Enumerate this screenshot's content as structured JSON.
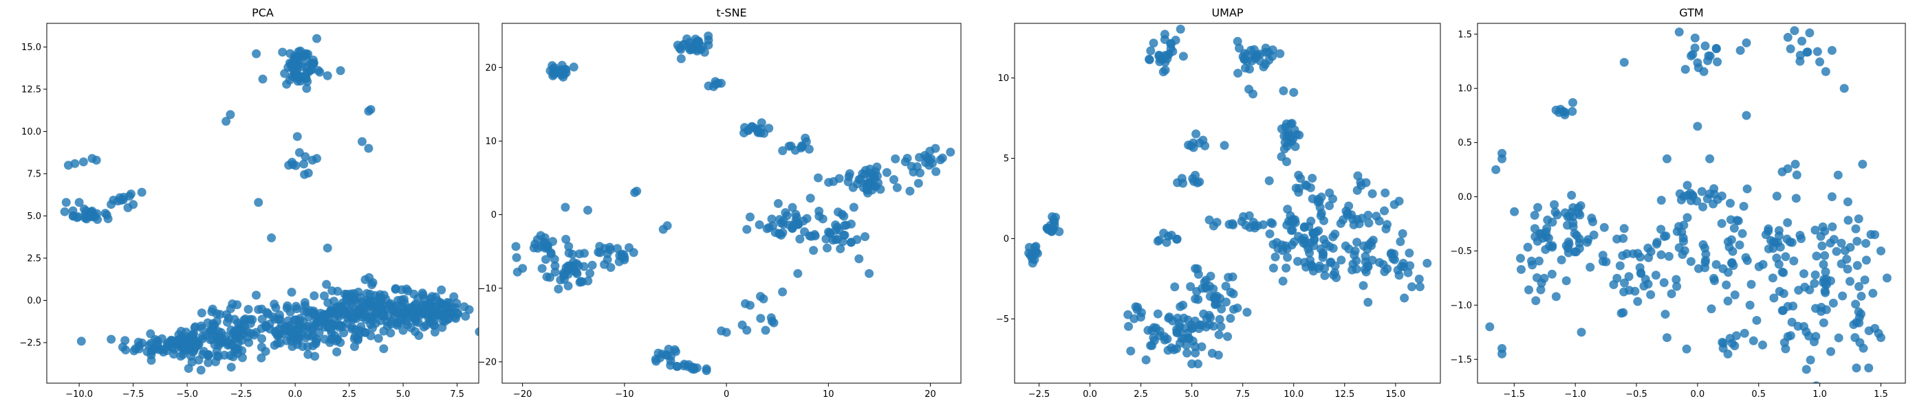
{
  "chart_data": [
    {
      "type": "scatter",
      "title": "PCA",
      "xlim": [
        -11.5,
        8.5
      ],
      "ylim": [
        -4.9,
        16.4
      ],
      "xticks": [
        -10.0,
        -7.5,
        -5.0,
        -2.5,
        0.0,
        2.5,
        5.0,
        7.5
      ],
      "yticks": [
        -2.5,
        0.0,
        2.5,
        5.0,
        7.5,
        10.0,
        12.5,
        15.0
      ],
      "xtick_labels": [
        "−10.0",
        "−7.5",
        "−5.0",
        "−2.5",
        "0.0",
        "2.5",
        "5.0",
        "7.5"
      ],
      "ytick_labels": [
        "−2.5",
        "0.0",
        "2.5",
        "5.0",
        "7.5",
        "10.0",
        "12.5",
        "15.0"
      ],
      "color": "#1f77b4",
      "clusters": [
        {
          "cx": -5.0,
          "cy": -2.6,
          "sx": 1.4,
          "sy": 0.5,
          "n": 140
        },
        {
          "cx": -2.8,
          "cy": -1.6,
          "sx": 0.9,
          "sy": 0.6,
          "n": 60
        },
        {
          "cx": 0.5,
          "cy": -1.6,
          "sx": 1.2,
          "sy": 0.7,
          "n": 130
        },
        {
          "cx": 3.0,
          "cy": -0.7,
          "sx": 1.3,
          "sy": 0.8,
          "n": 160
        },
        {
          "cx": 5.6,
          "cy": -0.6,
          "sx": 1.0,
          "sy": 0.6,
          "n": 100
        },
        {
          "cx": 7.0,
          "cy": -0.5,
          "sx": 0.4,
          "sy": 0.4,
          "n": 30
        },
        {
          "cx": 0.3,
          "cy": 13.8,
          "sx": 0.5,
          "sy": 0.6,
          "n": 60
        },
        {
          "cx": -9.6,
          "cy": 5.1,
          "sx": 0.5,
          "sy": 0.2,
          "n": 25
        },
        {
          "cx": -7.8,
          "cy": 5.8,
          "sx": 0.4,
          "sy": 0.3,
          "n": 10
        },
        {
          "cx": 0.2,
          "cy": 7.8,
          "sx": 0.3,
          "sy": 0.3,
          "n": 8
        }
      ],
      "points": [
        [
          -10.5,
          8.0
        ],
        [
          -10.2,
          8.1
        ],
        [
          -9.8,
          8.2
        ],
        [
          -9.4,
          8.4
        ],
        [
          -9.2,
          8.3
        ],
        [
          -10.6,
          5.8
        ],
        [
          -10.1,
          4.9
        ],
        [
          -10.0,
          5.8
        ],
        [
          -7.6,
          6.3
        ],
        [
          -7.1,
          6.4
        ],
        [
          -1.8,
          14.6
        ],
        [
          -3.2,
          10.6
        ],
        [
          -3.0,
          11.0
        ],
        [
          -1.5,
          13.1
        ],
        [
          -1.7,
          5.8
        ],
        [
          3.4,
          11.2
        ],
        [
          3.5,
          11.3
        ],
        [
          3.1,
          9.4
        ],
        [
          3.4,
          9.0
        ],
        [
          0.1,
          9.7
        ],
        [
          1.5,
          13.3
        ],
        [
          1.0,
          15.5
        ],
        [
          1.0,
          8.4
        ],
        [
          0.8,
          8.3
        ],
        [
          -1.1,
          3.7
        ],
        [
          1.5,
          3.1
        ],
        [
          -0.3,
          8.0
        ],
        [
          2.1,
          13.6
        ]
      ]
    },
    {
      "type": "scatter",
      "title": "t-SNE",
      "xlim": [
        -22.0,
        23.0
      ],
      "ylim": [
        -22.9,
        26.0
      ],
      "xticks": [
        -20,
        -10,
        0,
        10,
        20
      ],
      "yticks": [
        -20,
        -10,
        0,
        10,
        20
      ],
      "xtick_labels": [
        "−20",
        "−10",
        "0",
        "10",
        "20"
      ],
      "ytick_labels": [
        "−20",
        "−10",
        "0",
        "10",
        "20"
      ],
      "color": "#1f77b4",
      "clusters": [
        {
          "cx": -16.5,
          "cy": 19.5,
          "sx": 0.6,
          "sy": 0.5,
          "n": 20
        },
        {
          "cx": -3.0,
          "cy": 23.0,
          "sx": 0.8,
          "sy": 0.6,
          "n": 30
        },
        {
          "cx": -1.0,
          "cy": 17.8,
          "sx": 0.3,
          "sy": 0.3,
          "n": 6
        },
        {
          "cx": -15.5,
          "cy": -7.5,
          "sx": 1.2,
          "sy": 1.5,
          "n": 40
        },
        {
          "cx": -18.0,
          "cy": -4.0,
          "sx": 0.8,
          "sy": 0.8,
          "n": 20
        },
        {
          "cx": -11.0,
          "cy": -5.5,
          "sx": 1.2,
          "sy": 0.8,
          "n": 20
        },
        {
          "cx": -6.0,
          "cy": -19.2,
          "sx": 0.6,
          "sy": 0.6,
          "n": 12
        },
        {
          "cx": -3.5,
          "cy": -20.7,
          "sx": 0.9,
          "sy": 0.3,
          "n": 14
        },
        {
          "cx": 2.8,
          "cy": 11.5,
          "sx": 0.6,
          "sy": 0.4,
          "n": 15
        },
        {
          "cx": 6.0,
          "cy": -1.0,
          "sx": 1.8,
          "sy": 1.2,
          "n": 40
        },
        {
          "cx": 10.5,
          "cy": -2.5,
          "sx": 1.5,
          "sy": 1.5,
          "n": 30
        },
        {
          "cx": 14.0,
          "cy": 4.5,
          "sx": 1.8,
          "sy": 1.0,
          "n": 40
        },
        {
          "cx": 19.0,
          "cy": 7.5,
          "sx": 1.2,
          "sy": 1.0,
          "n": 20
        },
        {
          "cx": 7.0,
          "cy": 9.5,
          "sx": 0.7,
          "sy": 0.6,
          "n": 10
        },
        {
          "cx": 4.0,
          "cy": -13.5,
          "sx": 0.8,
          "sy": 1.5,
          "n": 10
        }
      ],
      "points": [
        [
          -20.5,
          -7.8
        ],
        [
          -20.0,
          -7.3
        ],
        [
          -9.0,
          3.0
        ],
        [
          -8.8,
          3.2
        ],
        [
          -6.2,
          -2.0
        ],
        [
          -5.8,
          -1.5
        ],
        [
          -0.5,
          -15.8
        ],
        [
          0.0,
          -16.0
        ],
        [
          12.5,
          1.0
        ],
        [
          13.0,
          -6.0
        ],
        [
          14.0,
          -8.0
        ],
        [
          2.0,
          -15.7
        ],
        [
          -13.6,
          0.6
        ],
        [
          -15.8,
          1.0
        ],
        [
          10.5,
          4.5
        ],
        [
          18.0,
          3.2
        ],
        [
          20.5,
          9.0
        ],
        [
          9.0,
          5.0
        ],
        [
          7.0,
          -8.0
        ],
        [
          5.5,
          -10.5
        ]
      ]
    },
    {
      "type": "scatter",
      "title": "UMAP",
      "xlim": [
        -3.7,
        17.2
      ],
      "ylim": [
        -9.0,
        13.4
      ],
      "xticks": [
        -2.5,
        0.0,
        2.5,
        5.0,
        7.5,
        10.0,
        12.5,
        15.0
      ],
      "yticks": [
        -5,
        0,
        5,
        10
      ],
      "xtick_labels": [
        "−2.5",
        "0.0",
        "2.5",
        "5.0",
        "7.5",
        "10.0",
        "12.5",
        "15.0"
      ],
      "ytick_labels": [
        "−5",
        "0",
        "5",
        "10"
      ],
      "color": "#1f77b4",
      "clusters": [
        {
          "cx": -1.8,
          "cy": 0.8,
          "sx": 0.25,
          "sy": 0.4,
          "n": 15
        },
        {
          "cx": -2.7,
          "cy": -0.8,
          "sx": 0.2,
          "sy": 0.4,
          "n": 12
        },
        {
          "cx": 3.7,
          "cy": 11.5,
          "sx": 0.4,
          "sy": 0.6,
          "n": 25
        },
        {
          "cx": 8.0,
          "cy": 11.4,
          "sx": 0.6,
          "sy": 0.5,
          "n": 30
        },
        {
          "cx": 9.8,
          "cy": 6.1,
          "sx": 0.35,
          "sy": 0.6,
          "n": 20
        },
        {
          "cx": 5.2,
          "cy": 6.0,
          "sx": 0.2,
          "sy": 0.3,
          "n": 8
        },
        {
          "cx": 5.0,
          "cy": 3.6,
          "sx": 0.3,
          "sy": 0.2,
          "n": 8
        },
        {
          "cx": 3.8,
          "cy": 0.0,
          "sx": 0.3,
          "sy": 0.2,
          "n": 8
        },
        {
          "cx": 8.0,
          "cy": 0.9,
          "sx": 1.0,
          "sy": 0.2,
          "n": 20
        },
        {
          "cx": 4.0,
          "cy": -5.8,
          "sx": 1.2,
          "sy": 0.8,
          "n": 60
        },
        {
          "cx": 6.0,
          "cy": -4.0,
          "sx": 0.8,
          "sy": 1.2,
          "n": 50
        },
        {
          "cx": 10.5,
          "cy": 0.0,
          "sx": 1.0,
          "sy": 0.8,
          "n": 40
        },
        {
          "cx": 12.5,
          "cy": 1.5,
          "sx": 1.2,
          "sy": 1.2,
          "n": 50
        },
        {
          "cx": 14.5,
          "cy": -1.5,
          "sx": 1.0,
          "sy": 1.0,
          "n": 40
        },
        {
          "cx": 11.0,
          "cy": -1.5,
          "sx": 1.2,
          "sy": 0.6,
          "n": 30
        },
        {
          "cx": 10.3,
          "cy": 3.8,
          "sx": 0.3,
          "sy": 0.5,
          "n": 10
        }
      ],
      "points": [
        [
          9.5,
          9.2
        ],
        [
          10.0,
          9.1
        ],
        [
          8.0,
          9.0
        ],
        [
          7.8,
          9.3
        ],
        [
          6.6,
          5.8
        ],
        [
          8.8,
          3.6
        ],
        [
          4.0,
          -6.8
        ],
        [
          5.0,
          -7.8
        ],
        [
          5.3,
          -7.8
        ],
        [
          16.2,
          -3.0
        ],
        [
          15.8,
          -3.0
        ],
        [
          9.4,
          5.1
        ],
        [
          2.0,
          -7.0
        ]
      ]
    },
    {
      "type": "scatter",
      "title": "GTM",
      "xlim": [
        -1.8,
        1.7
      ],
      "ylim": [
        -1.72,
        1.6
      ],
      "xticks": [
        -1.5,
        -1.0,
        -0.5,
        0.0,
        0.5,
        1.0,
        1.5
      ],
      "yticks": [
        -1.5,
        -1.0,
        -0.5,
        0.0,
        0.5,
        1.0,
        1.5
      ],
      "xtick_labels": [
        "−1.5",
        "−1.0",
        "−0.5",
        "0.0",
        "0.5",
        "1.0",
        "1.5"
      ],
      "ytick_labels": [
        "−1.5",
        "−1.0",
        "−0.5",
        "0.0",
        "0.5",
        "1.0",
        "1.5"
      ],
      "color": "#1f77b4",
      "clusters": [
        {
          "cx": -1.3,
          "cy": -0.5,
          "sx": 0.12,
          "sy": 0.25,
          "n": 40
        },
        {
          "cx": -1.0,
          "cy": -0.4,
          "sx": 0.1,
          "sy": 0.2,
          "n": 30
        },
        {
          "cx": -0.5,
          "cy": -0.6,
          "sx": 0.15,
          "sy": 0.25,
          "n": 40
        },
        {
          "cx": -0.1,
          "cy": -0.4,
          "sx": 0.1,
          "sy": 0.3,
          "n": 25
        },
        {
          "cx": 0.3,
          "cy": -0.6,
          "sx": 0.12,
          "sy": 0.3,
          "n": 40
        },
        {
          "cx": 0.75,
          "cy": -0.5,
          "sx": 0.12,
          "sy": 0.3,
          "n": 40
        },
        {
          "cx": 1.2,
          "cy": -0.6,
          "sx": 0.15,
          "sy": 0.3,
          "n": 40
        },
        {
          "cx": 0.9,
          "cy": -1.2,
          "sx": 0.12,
          "sy": 0.25,
          "n": 25
        },
        {
          "cx": 0.05,
          "cy": 1.3,
          "sx": 0.08,
          "sy": 0.08,
          "n": 15
        },
        {
          "cx": 0.9,
          "cy": 1.35,
          "sx": 0.08,
          "sy": 0.1,
          "n": 12
        },
        {
          "cx": -1.1,
          "cy": 0.78,
          "sx": 0.06,
          "sy": 0.04,
          "n": 8
        },
        {
          "cx": 0.0,
          "cy": 0.0,
          "sx": 0.1,
          "sy": 0.08,
          "n": 15
        },
        {
          "cx": 0.3,
          "cy": -1.4,
          "sx": 0.1,
          "sy": 0.1,
          "n": 10
        },
        {
          "cx": 1.35,
          "cy": -1.2,
          "sx": 0.12,
          "sy": 0.1,
          "n": 12
        }
      ],
      "points": [
        [
          -1.6,
          0.35
        ],
        [
          -1.6,
          0.4
        ],
        [
          -1.65,
          0.25
        ],
        [
          -1.7,
          -1.2
        ],
        [
          -1.6,
          -1.4
        ],
        [
          -1.6,
          -1.45
        ],
        [
          -0.15,
          1.52
        ],
        [
          -0.6,
          1.24
        ],
        [
          0.35,
          1.35
        ],
        [
          0.4,
          1.42
        ],
        [
          1.1,
          1.35
        ],
        [
          1.2,
          1.0
        ],
        [
          0.4,
          0.75
        ],
        [
          0.0,
          0.65
        ],
        [
          -0.25,
          0.35
        ],
        [
          0.1,
          0.35
        ],
        [
          1.15,
          0.2
        ],
        [
          1.35,
          0.3
        ],
        [
          1.45,
          -0.35
        ],
        [
          1.5,
          -0.5
        ],
        [
          1.55,
          -0.75
        ],
        [
          1.5,
          -1.3
        ],
        [
          1.4,
          -1.58
        ],
        [
          1.3,
          -1.58
        ],
        [
          0.8,
          0.3
        ],
        [
          -0.95,
          -1.25
        ],
        [
          -0.3,
          -0.3
        ],
        [
          -0.25,
          -1.3
        ],
        [
          0.7,
          -1.05
        ],
        [
          1.1,
          0.0
        ]
      ]
    }
  ]
}
